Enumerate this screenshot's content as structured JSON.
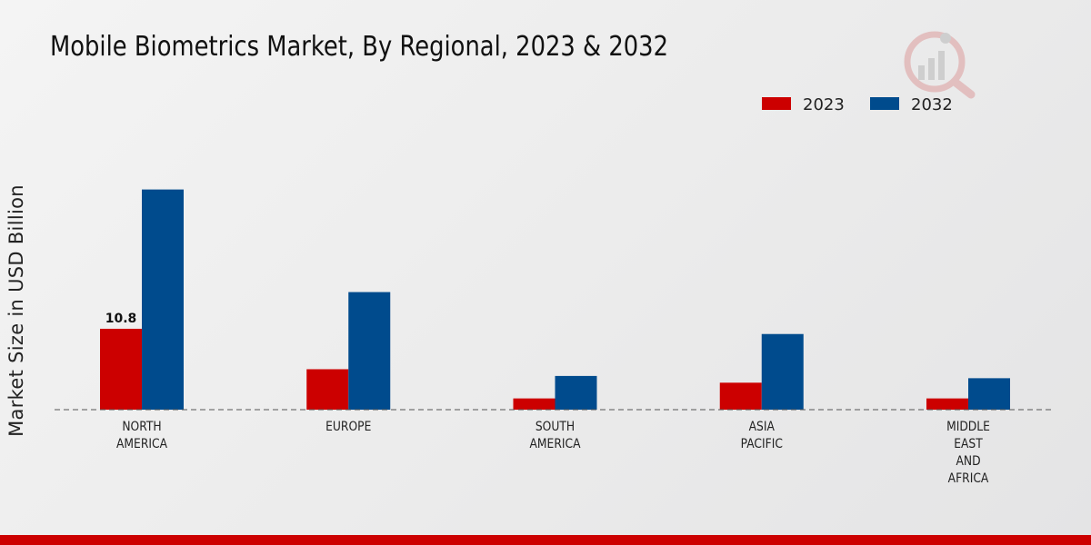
{
  "chart_data": {
    "type": "bar",
    "title": "Mobile Biometrics Market, By Regional, 2023 & 2032",
    "xlabel": "",
    "ylabel": "Market Size in USD Billion",
    "ylim": [
      0,
      45
    ],
    "grid": false,
    "legend_position": "top-right",
    "categories": [
      [
        "NORTH",
        "AMERICA"
      ],
      [
        "EUROPE"
      ],
      [
        "SOUTH",
        "AMERICA"
      ],
      [
        "ASIA",
        "PACIFIC"
      ],
      [
        "MIDDLE",
        "EAST",
        "AND",
        "AFRICA"
      ]
    ],
    "series": [
      {
        "name": "2023",
        "color": "#cc0000",
        "values": [
          10.8,
          5.4,
          1.5,
          3.6,
          1.5
        ]
      },
      {
        "name": "2032",
        "color": "#004b8d",
        "values": [
          29.4,
          15.7,
          4.5,
          10.1,
          4.2
        ]
      }
    ],
    "data_labels": [
      {
        "series": 0,
        "category": 0,
        "text": "10.8"
      }
    ]
  },
  "theme": {
    "accent_red": "#cc0000",
    "accent_blue": "#004b8d",
    "bottom_bar_color": "#cc0000"
  },
  "logo_icon": "analytics-magnifier-icon"
}
